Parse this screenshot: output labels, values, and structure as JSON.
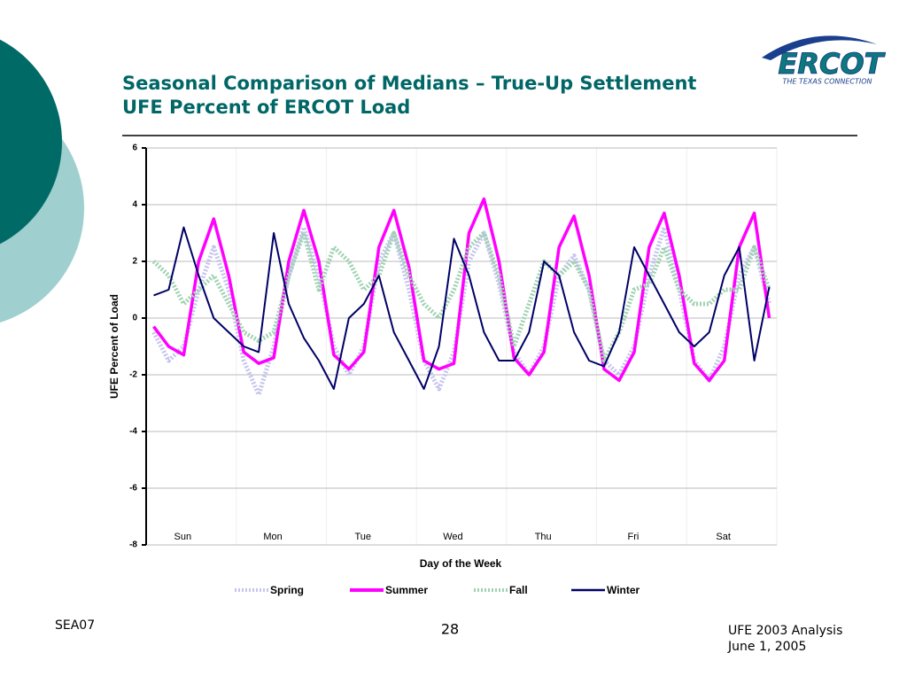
{
  "logo": {
    "name": "ERCOT",
    "tagline": "THE TEXAS CONNECTION"
  },
  "footer": {
    "left": "SEA07",
    "page": "28",
    "right_line1": "UFE 2003 Analysis",
    "right_line2": "June 1, 2005"
  },
  "chart_data": {
    "type": "line",
    "title": "Seasonal Comparison of Medians – True-Up Settlement",
    "subtitle": "UFE Percent of ERCOT Load",
    "x_label": "Day of the Week",
    "y_label": "UFE Percent of Load",
    "categories": [
      null,
      null,
      null,
      "Sun",
      null,
      null,
      null,
      null,
      null,
      "Mon",
      null,
      null,
      null,
      null,
      null,
      "Tue",
      null,
      null,
      null,
      null,
      null,
      "Wed",
      null,
      null,
      null,
      null,
      null,
      "Thu",
      null,
      null,
      null,
      null,
      null,
      "Fri",
      null,
      null,
      null,
      null,
      null,
      "Sat",
      null,
      null
    ],
    "ylim": [
      -8,
      6
    ],
    "yticks": [
      -8,
      -6,
      -4,
      -2,
      0,
      2,
      4,
      6
    ],
    "grid": true,
    "legend": "bottom",
    "series": [
      {
        "name": "Spring",
        "color": "#c4c4ee",
        "dash": true,
        "values": [
          -0.5,
          -1.5,
          -1,
          1,
          2.5,
          1,
          -1.5,
          -2.7,
          -1,
          1.5,
          3.2,
          1.5,
          -1,
          -2,
          -1,
          2,
          3,
          1,
          -1.5,
          -2.5,
          -1.2,
          2,
          3,
          1.2,
          -1.2,
          -2,
          -1,
          1.5,
          2.2,
          1,
          -1.5,
          -2,
          -1,
          1.5,
          3.2,
          1,
          -1.5,
          -2.2,
          -1,
          1.5,
          2.5,
          0.5
        ]
      },
      {
        "name": "Summer",
        "color": "#ff00ff",
        "dash": false,
        "values": [
          -0.3,
          -1,
          -1.3,
          2,
          3.5,
          1.5,
          -1.2,
          -1.6,
          -1.4,
          2,
          3.8,
          2,
          -1.3,
          -1.8,
          -1.2,
          2.5,
          3.8,
          1.8,
          -1.5,
          -1.8,
          -1.6,
          3,
          4.2,
          2,
          -1.4,
          -2,
          -1.2,
          2.5,
          3.6,
          1.5,
          -1.8,
          -2.2,
          -1.2,
          2.5,
          3.7,
          1.5,
          -1.6,
          -2.2,
          -1.5,
          2.5,
          3.7,
          0
        ]
      },
      {
        "name": "Fall",
        "color": "#9fd2b0",
        "dash": true,
        "values": [
          2,
          1.5,
          0.5,
          1,
          1.5,
          0.5,
          -0.5,
          -0.8,
          -0.5,
          1.5,
          3,
          1,
          2.5,
          2,
          1,
          1.5,
          3,
          1.5,
          0.5,
          0,
          1,
          2.5,
          3,
          1.5,
          -1,
          0.5,
          2,
          1.5,
          2,
          1,
          -1.5,
          -0.5,
          1,
          1.2,
          2.5,
          1,
          0.5,
          0.5,
          1,
          1,
          2.5,
          1
        ]
      },
      {
        "name": "Winter",
        "color": "#000066",
        "dash": false,
        "values": [
          0.8,
          1,
          3.2,
          1.5,
          0,
          -0.5,
          -1,
          -1.2,
          3,
          0.5,
          -0.7,
          -1.5,
          -2.5,
          0,
          0.5,
          1.5,
          -0.5,
          -1.5,
          -2.5,
          -1,
          2.8,
          1.5,
          -0.5,
          -1.5,
          -1.5,
          -0.5,
          2,
          1.5,
          -0.5,
          -1.5,
          -1.7,
          -0.5,
          2.5,
          1.5,
          0.5,
          -0.5,
          -1,
          -0.5,
          1.5,
          2.5,
          -1.5,
          1.1
        ]
      }
    ]
  }
}
